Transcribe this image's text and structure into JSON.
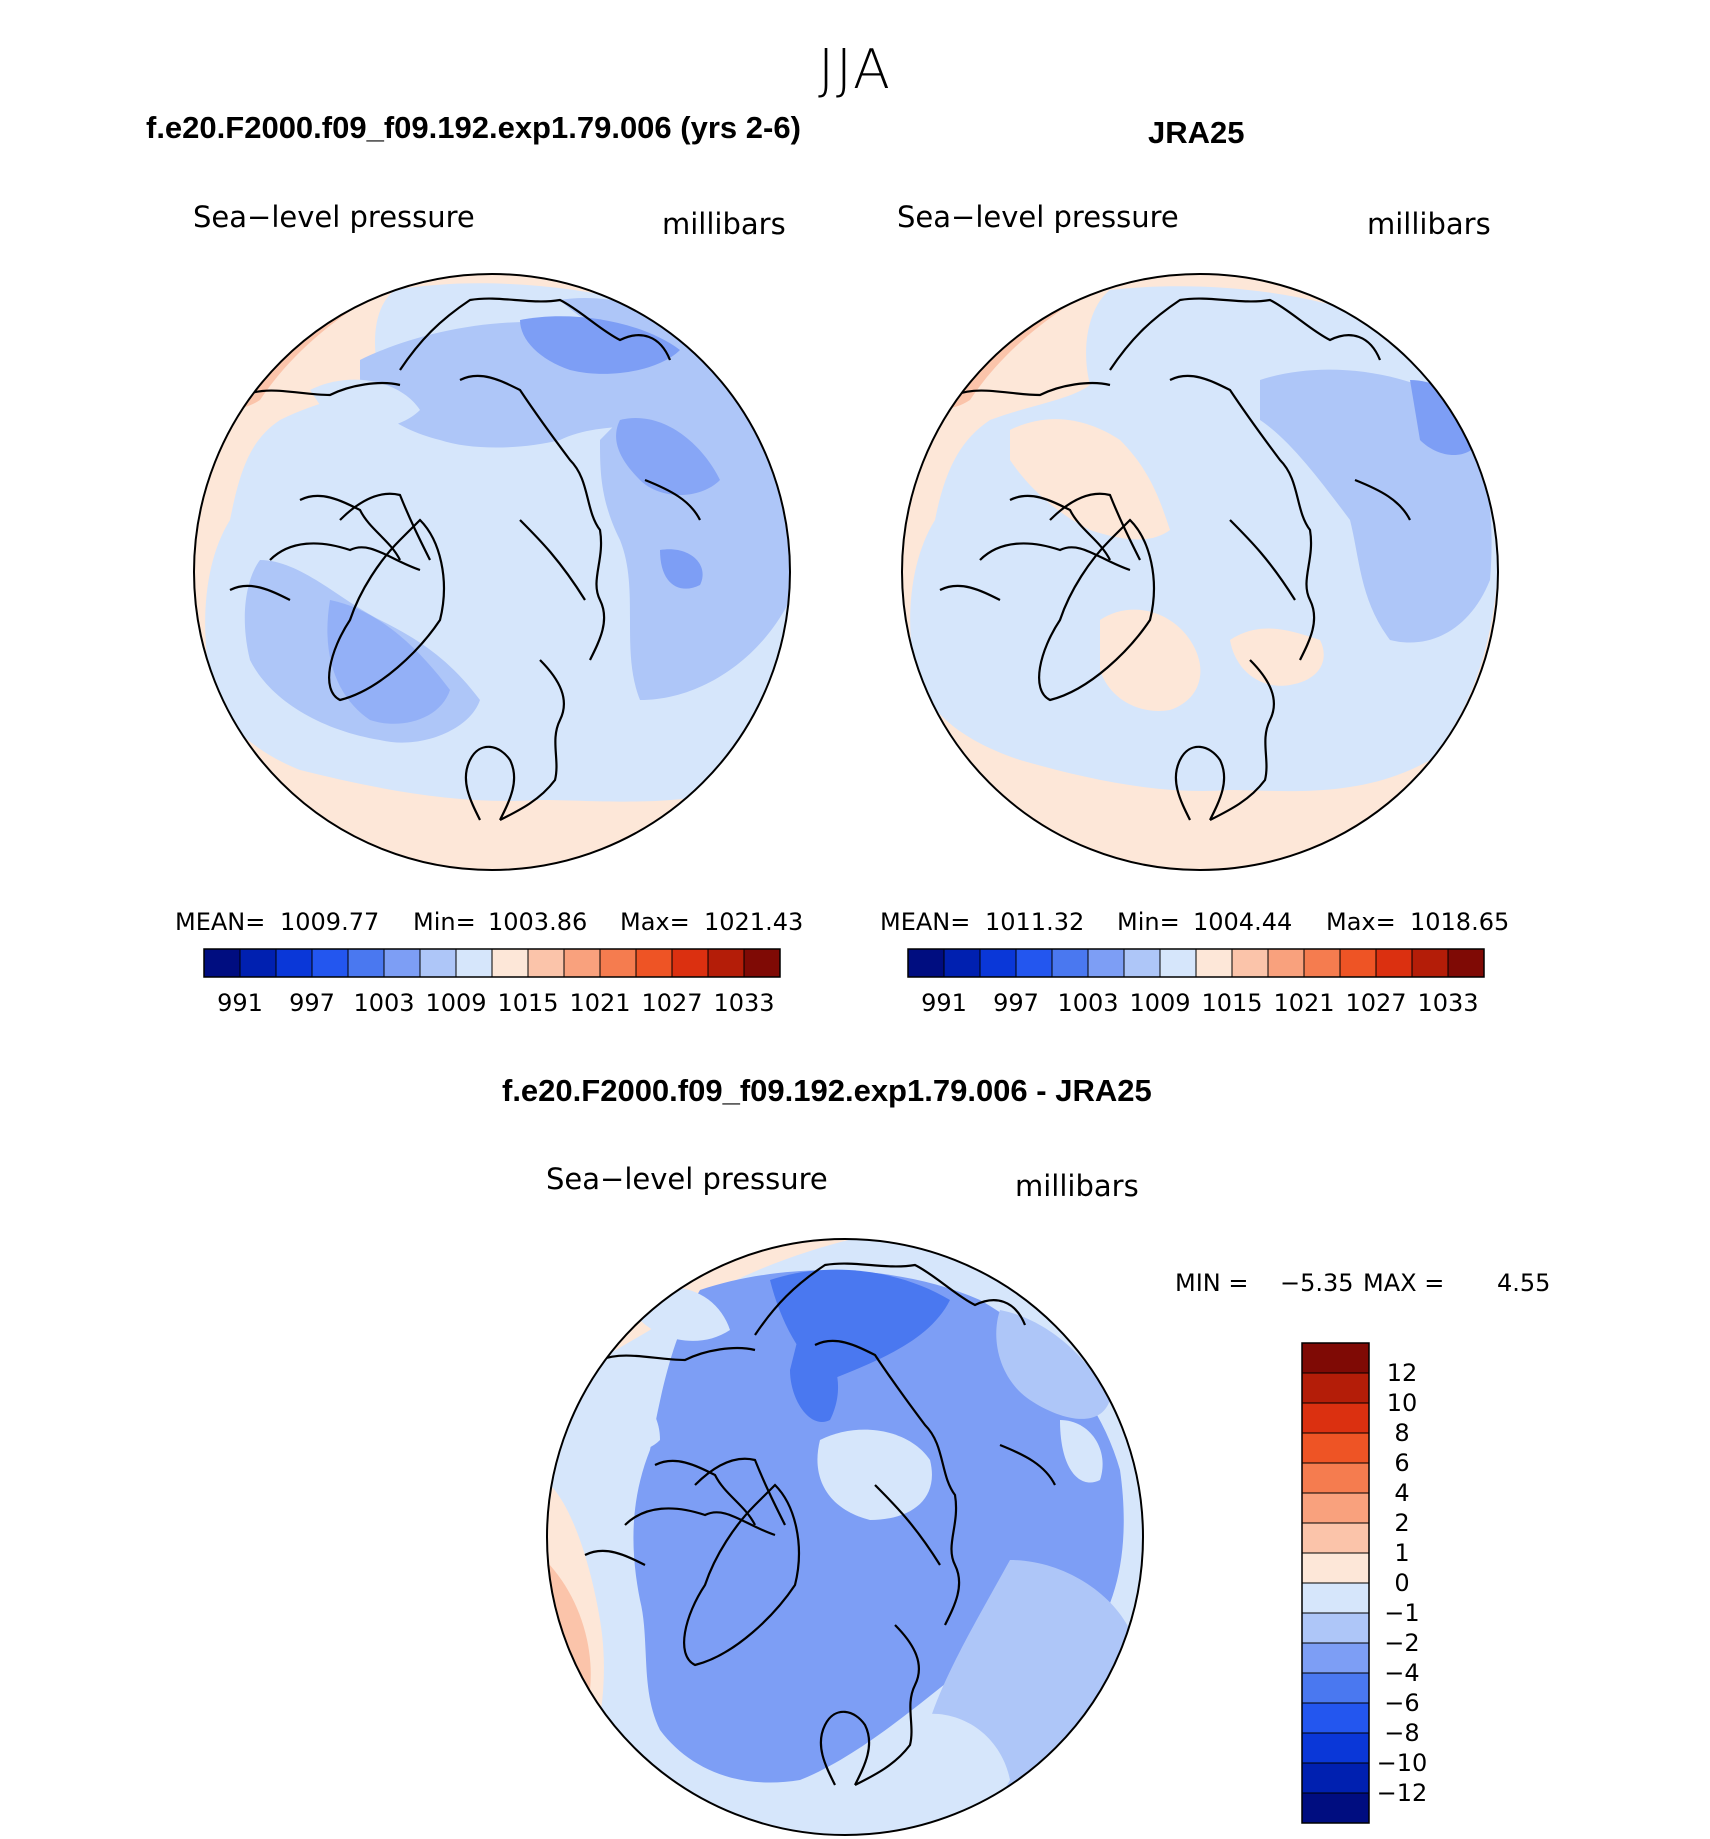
{
  "season": "JJA",
  "panels": [
    {
      "title": "f.e20.F2000.f09_f09.192.exp1.79.006 (yrs 2-6)",
      "variable": "Sea−level pressure",
      "units": "millibars",
      "stats": {
        "mean_label": "MEAN=",
        "mean": "1009.77",
        "min_label": "Min=",
        "min": "1003.86",
        "max_label": "Max=",
        "max": "1021.43"
      }
    },
    {
      "title": "JRA25",
      "variable": "Sea−level pressure",
      "units": "millibars",
      "stats": {
        "mean_label": "MEAN=",
        "mean": "1011.32",
        "min_label": "Min=",
        "min": "1004.44",
        "max_label": "Max=",
        "max": "1018.65"
      }
    },
    {
      "title": "f.e20.F2000.f09_f09.192.exp1.79.006 - JRA25",
      "variable": "Sea−level pressure",
      "units": "millibars",
      "stats": {
        "min_label": "MIN =",
        "min": "−5.35",
        "max_label": "MAX =",
        "max": "4.55"
      }
    }
  ],
  "abs_colorbar": {
    "colors": [
      "#000d80",
      "#0020b0",
      "#0a37d8",
      "#2356ef",
      "#4a78f0",
      "#7d9ef5",
      "#aec6f8",
      "#d6e6fb",
      "#fde7d8",
      "#fbc4aa",
      "#f9a17d",
      "#f57c4f",
      "#ee5425",
      "#db3010",
      "#b41d08",
      "#7f0a05"
    ],
    "labels": [
      "991",
      "997",
      "1003",
      "1009",
      "1015",
      "1021",
      "1027",
      "1033"
    ]
  },
  "diff_colorbar": {
    "colors": [
      "#000d80",
      "#0020b0",
      "#0a37d8",
      "#2356ef",
      "#4a78f0",
      "#7d9ef5",
      "#aec6f8",
      "#d6e6fb",
      "#fde7d8",
      "#fbc4aa",
      "#f9a17d",
      "#f57c4f",
      "#ee5425",
      "#db3010",
      "#b41d08",
      "#7f0a05"
    ],
    "labels": [
      "12",
      "10",
      "8",
      "6",
      "4",
      "2",
      "1",
      "0",
      "−1",
      "−2",
      "−4",
      "−6",
      "−8",
      "−10",
      "−12"
    ]
  }
}
